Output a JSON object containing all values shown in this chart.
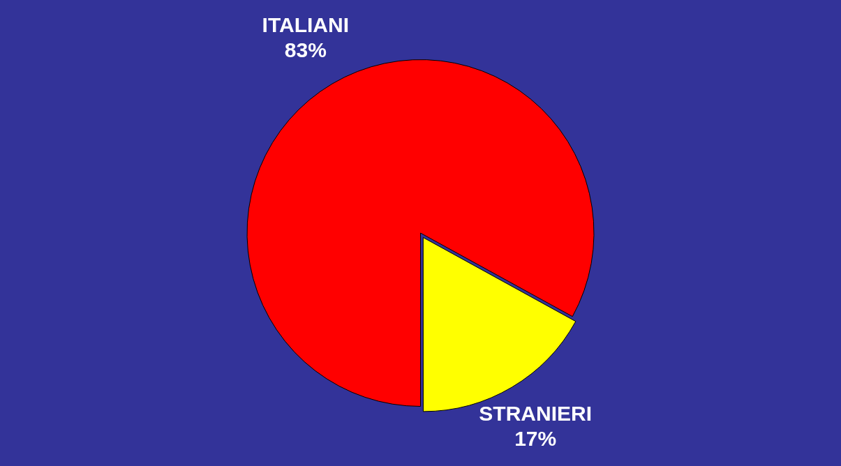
{
  "chart_data": {
    "type": "pie",
    "categories": [
      "ITALIANI",
      "STRANIERI"
    ],
    "values": [
      83,
      17
    ],
    "colors": [
      "#ff0000",
      "#ffff00"
    ],
    "value_labels": [
      "83%",
      "17%"
    ],
    "legend": false
  }
}
